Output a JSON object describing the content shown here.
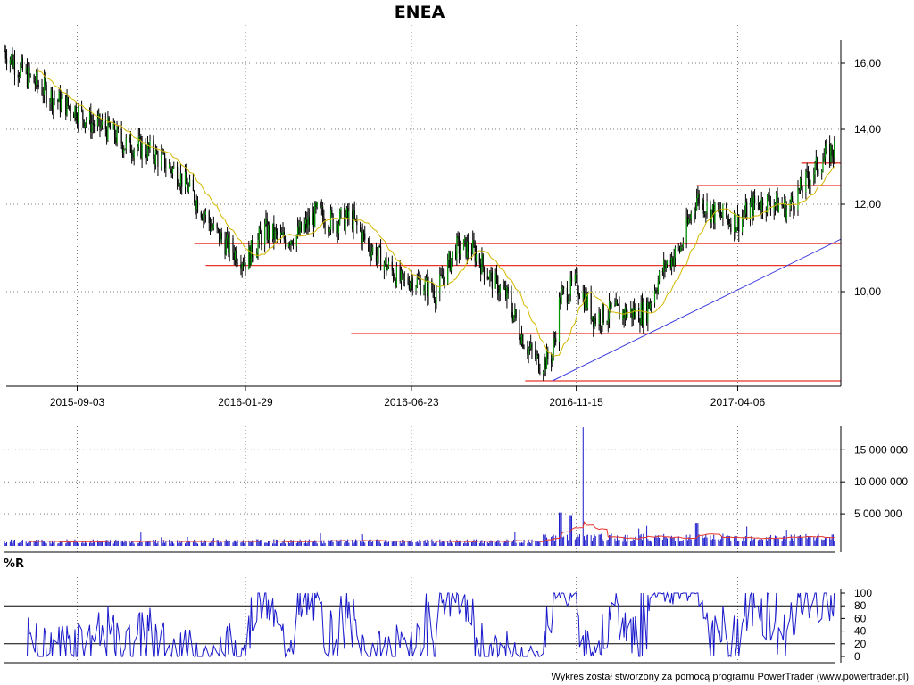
{
  "chart_data": [
    {
      "type": "candlestick",
      "title": "ENEA",
      "x_tick_labels": [
        "2015-09-03",
        "2016-01-29",
        "2016-06-23",
        "2016-11-15",
        "2017-04-06"
      ],
      "y_tick_labels": [
        "16,00",
        "14,00",
        "12,00",
        "10,00"
      ],
      "ylim": [
        8.3,
        16.6
      ],
      "price_path": [
        [
          "2015-07-01",
          16.4
        ],
        [
          "2015-07-15",
          15.8
        ],
        [
          "2015-08-01",
          15.3
        ],
        [
          "2015-08-15",
          14.9
        ],
        [
          "2015-09-01",
          14.6
        ],
        [
          "2015-09-15",
          14.2
        ],
        [
          "2015-10-01",
          14.0
        ],
        [
          "2015-10-15",
          13.6
        ],
        [
          "2015-11-01",
          13.5
        ],
        [
          "2015-11-15",
          13.2
        ],
        [
          "2015-12-01",
          12.8
        ],
        [
          "2015-12-15",
          12.2
        ],
        [
          "2016-01-01",
          11.4
        ],
        [
          "2016-01-15",
          11.0
        ],
        [
          "2016-01-29",
          10.7
        ],
        [
          "2016-02-15",
          11.4
        ],
        [
          "2016-03-01",
          11.2
        ],
        [
          "2016-03-15",
          11.3
        ],
        [
          "2016-04-01",
          11.8
        ],
        [
          "2016-04-15",
          11.6
        ],
        [
          "2016-05-01",
          11.7
        ],
        [
          "2016-05-15",
          11.1
        ],
        [
          "2016-06-01",
          10.6
        ],
        [
          "2016-06-15",
          10.2
        ],
        [
          "2016-06-23",
          10.3
        ],
        [
          "2016-07-15",
          10.0
        ],
        [
          "2016-08-01",
          11.0
        ],
        [
          "2016-08-15",
          11.0
        ],
        [
          "2016-09-01",
          10.3
        ],
        [
          "2016-09-15",
          9.9
        ],
        [
          "2016-10-01",
          9.0
        ],
        [
          "2016-10-15",
          8.6
        ],
        [
          "2016-10-25",
          8.8
        ],
        [
          "2016-11-01",
          9.9
        ],
        [
          "2016-11-15",
          10.2
        ],
        [
          "2016-12-01",
          9.5
        ],
        [
          "2016-12-15",
          9.6
        ],
        [
          "2017-01-01",
          9.6
        ],
        [
          "2017-01-15",
          9.6
        ],
        [
          "2017-02-01",
          10.6
        ],
        [
          "2017-02-15",
          11.0
        ],
        [
          "2017-03-01",
          12.2
        ],
        [
          "2017-03-15",
          11.8
        ],
        [
          "2017-04-06",
          11.6
        ],
        [
          "2017-04-20",
          12.0
        ],
        [
          "2017-05-05",
          12.1
        ],
        [
          "2017-05-20",
          11.9
        ],
        [
          "2017-06-05",
          12.6
        ],
        [
          "2017-06-20",
          13.2
        ],
        [
          "2017-07-01",
          13.5
        ]
      ],
      "moving_average_color": "#d4b800",
      "candle_up_color": "#009900",
      "candle_down_color": "#000000",
      "horizontal_levels": [
        {
          "value": 11.1,
          "from": "2015-12-15",
          "to": "2017-07-01"
        },
        {
          "value": 10.6,
          "from": "2015-12-25",
          "to": "2017-07-01"
        },
        {
          "value": 9.2,
          "from": "2016-05-01",
          "to": "2017-07-01"
        },
        {
          "value": 8.3,
          "from": "2016-10-01",
          "to": "2017-07-01"
        },
        {
          "value": 12.5,
          "from": "2017-03-01",
          "to": "2017-07-01"
        },
        {
          "value": 13.1,
          "from": "2017-06-01",
          "to": "2017-07-01"
        }
      ],
      "level_color": "#e8352a",
      "trendline": {
        "from": [
          "2016-10-25",
          8.3
        ],
        "to": [
          "2017-07-01",
          11.2
        ],
        "color": "#3a3adf"
      },
      "grid": true
    },
    {
      "type": "bar",
      "panel": "volume",
      "y_tick_labels": [
        "15 000 000",
        "10 000 000",
        "5 000 000"
      ],
      "ylim": [
        0,
        19500000
      ],
      "spikes": [
        [
          "2016-11-01",
          5200000
        ],
        [
          "2016-11-10",
          4800000
        ],
        [
          "2016-11-20",
          18500000
        ],
        [
          "2017-01-15",
          3100000
        ],
        [
          "2017-03-01",
          3600000
        ],
        [
          "2017-04-15",
          3000000
        ],
        [
          "2017-05-20",
          2500000
        ]
      ],
      "baseline_volume": 700000,
      "bar_color": "#1a1acc",
      "average_color": "#e8352a"
    },
    {
      "type": "line",
      "panel": "oscillator",
      "name": "%R",
      "y_tick_labels": [
        "100",
        "80",
        "60",
        "40",
        "20",
        "0"
      ],
      "ylim": [
        0,
        100
      ],
      "reference_lines": [
        80,
        20
      ],
      "line_color": "#1a1acc"
    }
  ],
  "footer": {
    "credit": "Wykres został stworzony za pomocą programu PowerTrader (www.powertrader.pl)"
  }
}
